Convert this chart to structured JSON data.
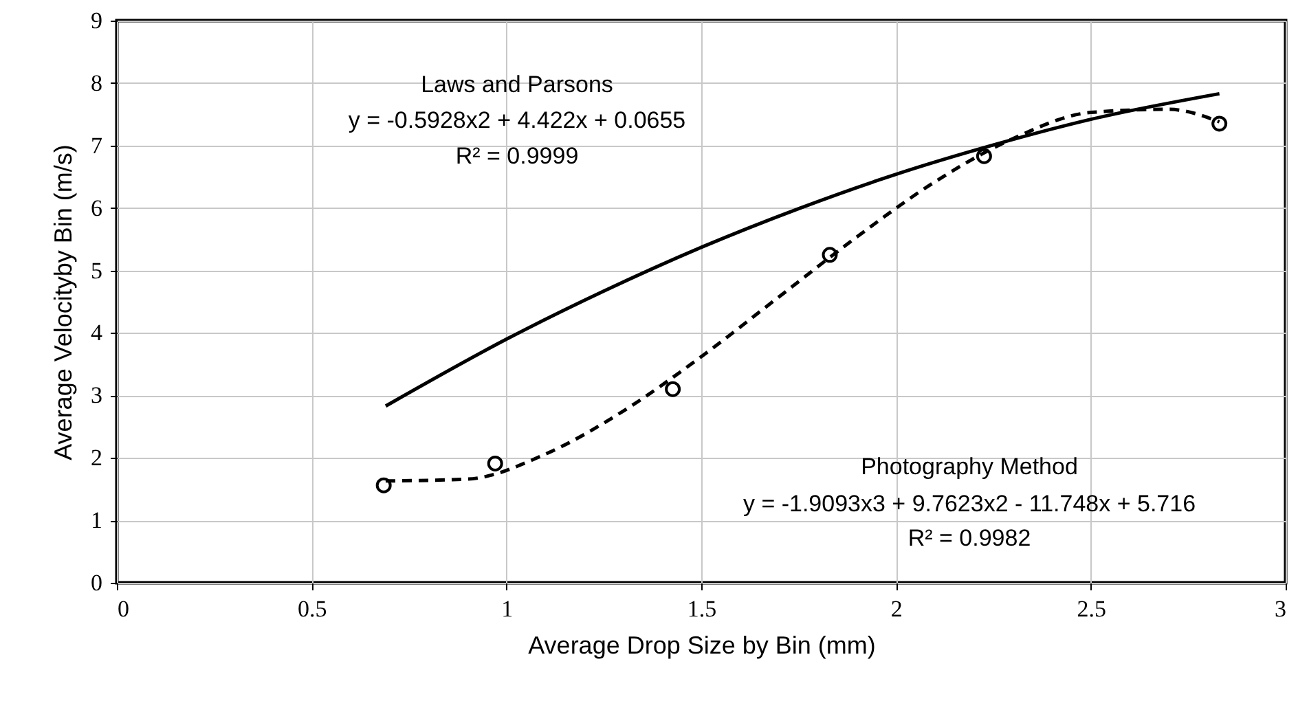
{
  "chart_data": {
    "type": "scatter",
    "xlabel": "Average Drop Size by Bin (mm)",
    "ylabel": "Average Velocityby Bin (m/s)",
    "xlim": [
      0,
      3
    ],
    "xticks": [
      0,
      0.5,
      1,
      1.5,
      2,
      2.5,
      3
    ],
    "ylim": [
      0,
      9
    ],
    "yticks": [
      0,
      1,
      2,
      3,
      4,
      5,
      6,
      7,
      8,
      9
    ],
    "grid": true,
    "series": [
      {
        "color": "#000000",
        "marker": "circle",
        "x": [
          0.685,
          0.971,
          1.427,
          1.83,
          2.226,
          2.83
        ],
        "values": [
          1.56,
          1.91,
          3.1,
          5.25,
          6.83,
          7.35
        ]
      },
      {
        "type": "line",
        "color": "#000000",
        "line_style": "solid",
        "x": [
          0.69,
          1.0,
          1.25,
          1.5,
          1.75,
          2.0,
          2.25,
          2.5,
          2.83
        ],
        "values": [
          2.83,
          3.9,
          4.67,
          5.37,
          5.99,
          6.54,
          7.01,
          7.42,
          7.83
        ]
      },
      {
        "type": "line",
        "color": "#000000",
        "line_style": "dashed",
        "x": [
          0.69,
          0.9,
          1.1,
          1.3,
          1.5,
          1.7,
          1.9,
          2.1,
          2.3,
          2.5,
          2.7,
          2.83
        ],
        "values": [
          1.63,
          1.66,
          2.06,
          2.75,
          3.62,
          4.58,
          5.54,
          6.42,
          7.11,
          7.53,
          7.58,
          7.38
        ]
      }
    ],
    "annotations": [
      "Laws and Parsons",
      "y = -0.5928x2 + 4.422x + 0.0655",
      "R² = 0.9999",
      "Photography Method",
      "y = -1.9093x3 + 9.7623x2 - 11.748x + 5.716",
      "R² = 0.9982"
    ]
  }
}
